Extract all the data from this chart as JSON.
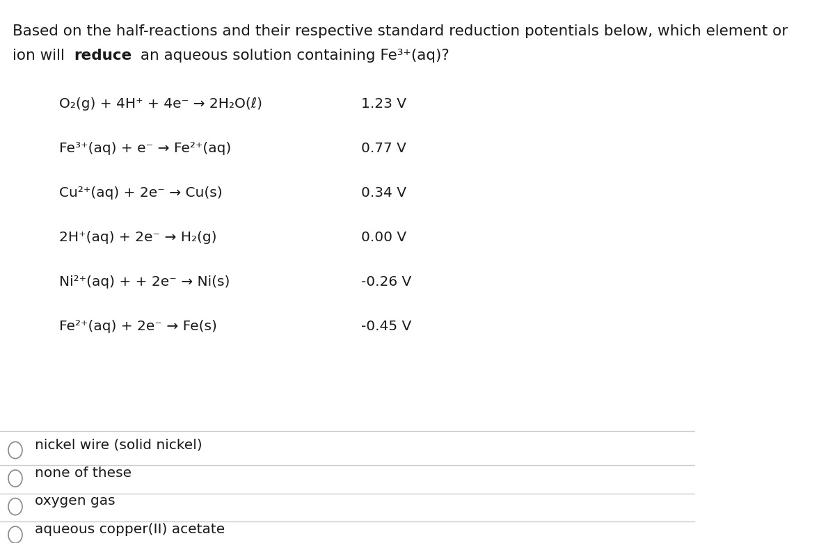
{
  "background_color": "#ffffff",
  "title_line1": "Based on the half-reactions and their respective standard reduction potentials below, which element or",
  "reactions": [
    {
      "equation": "O₂(g) + 4H⁺ + 4e⁻ → 2H₂O(ℓ)",
      "potential": "1.23 V"
    },
    {
      "equation": "Fe³⁺(aq) + e⁻ → Fe²⁺(aq)",
      "potential": "0.77 V"
    },
    {
      "equation": "Cu²⁺(aq) + 2e⁻ → Cu(s)",
      "potential": "0.34 V"
    },
    {
      "equation": "2H⁺(aq) + 2e⁻ → H₂(g)",
      "potential": "0.00 V"
    },
    {
      "equation": "Ni²⁺(aq) + + 2e⁻ → Ni(s)",
      "potential": "-0.26 V"
    },
    {
      "equation": "Fe²⁺(aq) + 2e⁻ → Fe(s)",
      "potential": "-0.45 V"
    }
  ],
  "options": [
    "nickel wire (solid nickel)",
    "none of these",
    "oxygen gas",
    "aqueous copper(II) acetate"
  ],
  "text_color": "#1a1a1a",
  "line_color": "#cccccc",
  "font_size_title": 15.5,
  "font_size_reaction": 14.5,
  "font_size_option": 14.5
}
